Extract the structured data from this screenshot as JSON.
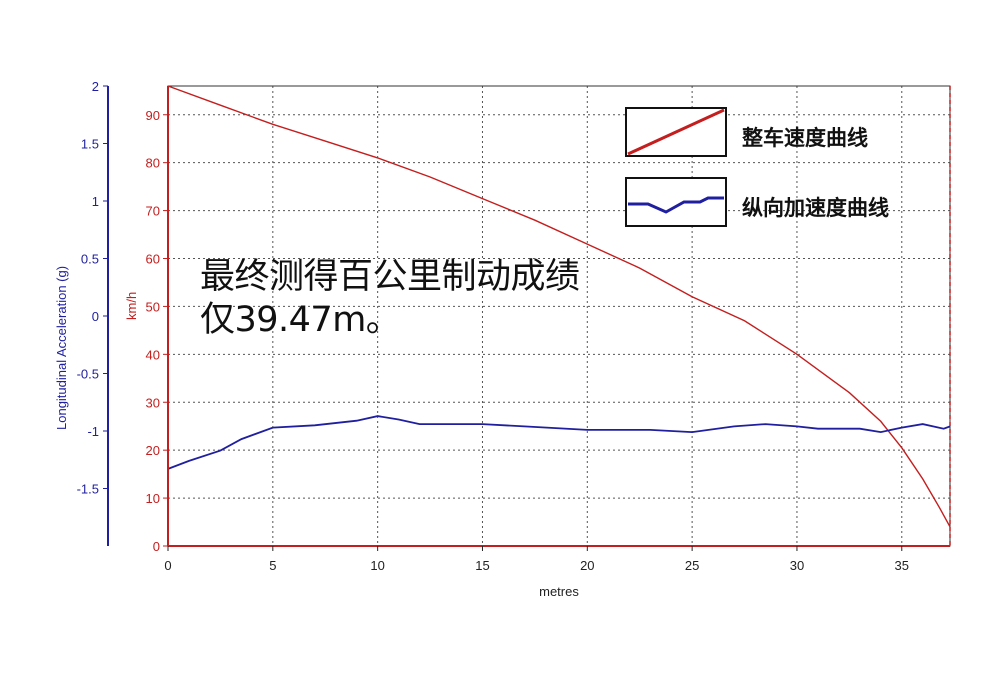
{
  "chart_data": {
    "type": "line",
    "xlabel": "metres",
    "xlim": [
      0,
      37.3
    ],
    "x_ticks": [
      0,
      5,
      10,
      15,
      20,
      25,
      30,
      35
    ],
    "left_axis": {
      "label": "Longitudinal Acceleration (g)",
      "color": "#1f1fa0",
      "lim": [
        -2,
        2
      ],
      "ticks": [
        "2",
        "1.5",
        "1",
        "0.5",
        "0",
        "-0.5",
        "-1",
        "-1.5"
      ],
      "tick_values": [
        2,
        1.5,
        1,
        0.5,
        0,
        -0.5,
        -1,
        -1.5
      ]
    },
    "right_axis": {
      "label": "km/h",
      "color": "#c41e1e",
      "lim": [
        0,
        96
      ],
      "ticks": [
        "90",
        "80",
        "70",
        "60",
        "50",
        "40",
        "30",
        "20",
        "10",
        "0"
      ],
      "tick_values": [
        90,
        80,
        70,
        60,
        50,
        40,
        30,
        20,
        10,
        0
      ]
    },
    "series": [
      {
        "name": "整车速度曲线",
        "axis": "speed",
        "color": "#c41e1e",
        "x": [
          0,
          2.5,
          5,
          7.5,
          10,
          12.5,
          15,
          17.5,
          20,
          22.5,
          25,
          27.5,
          30,
          32.5,
          34,
          35,
          36,
          36.8,
          37.3
        ],
        "values": [
          96,
          92,
          88,
          84.5,
          81,
          77,
          72.5,
          68,
          63,
          58,
          52,
          47,
          40,
          32,
          26,
          20.5,
          14,
          8,
          4
        ]
      },
      {
        "name": "纵向加速度曲线",
        "axis": "accel",
        "color": "#1f1fa0",
        "x": [
          0,
          1,
          2.5,
          3.5,
          5,
          7,
          9,
          10,
          11,
          12,
          15,
          17,
          20,
          23,
          25,
          27,
          28.5,
          30,
          31,
          33,
          34,
          35,
          36,
          37,
          37.3
        ],
        "values": [
          -1.33,
          -1.26,
          -1.17,
          -1.07,
          -0.97,
          -0.95,
          -0.91,
          -0.87,
          -0.9,
          -0.94,
          -0.94,
          -0.96,
          -0.99,
          -0.99,
          -1.01,
          -0.96,
          -0.94,
          -0.96,
          -0.98,
          -0.98,
          -1.01,
          -0.97,
          -0.94,
          -0.98,
          -0.96
        ]
      }
    ],
    "grid": true,
    "legend_position": "top-right"
  },
  "annotation": {
    "line1": "最终测得百公里制动成绩",
    "line2": "仅39.47m。"
  }
}
